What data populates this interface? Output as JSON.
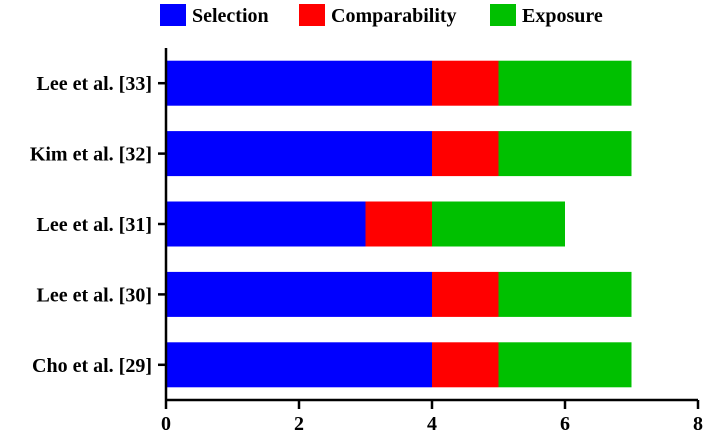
{
  "chart_data": {
    "type": "bar",
    "orientation": "horizontal",
    "stacked": true,
    "categories": [
      "Lee et al. [33]",
      "Kim et al. [32]",
      "Lee et al. [31]",
      "Lee et al. [30]",
      "Cho et al. [29]"
    ],
    "series": [
      {
        "name": "Selection",
        "color": "#0000ff",
        "values": [
          4,
          4,
          3,
          4,
          4
        ]
      },
      {
        "name": "Comparability",
        "color": "#ff0000",
        "values": [
          1,
          1,
          1,
          1,
          1
        ]
      },
      {
        "name": "Exposure",
        "color": "#00c000",
        "values": [
          2,
          2,
          2,
          2,
          2
        ]
      }
    ],
    "xlim": [
      0,
      8
    ],
    "xticks": [
      "0",
      "2",
      "4",
      "6",
      "8"
    ],
    "legend_position": "top",
    "grid": false,
    "title": "",
    "xlabel": "",
    "ylabel": ""
  }
}
